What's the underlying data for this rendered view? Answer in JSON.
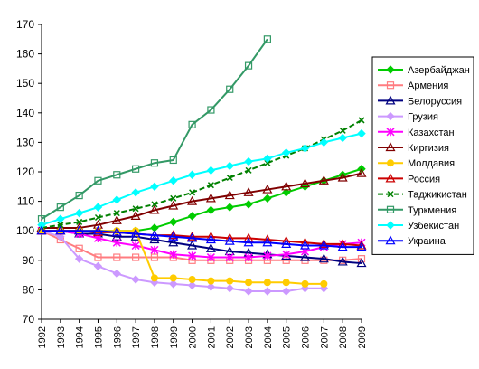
{
  "chart_data": {
    "type": "line",
    "x": [
      "1992",
      "1993",
      "1994",
      "1995",
      "1996",
      "1997",
      "1998",
      "1999",
      "2000",
      "2001",
      "2002",
      "2003",
      "2004",
      "2005",
      "2006",
      "2007",
      "2008",
      "2009"
    ],
    "ylim": [
      70,
      170
    ],
    "yticks": [
      70,
      80,
      90,
      100,
      110,
      120,
      130,
      140,
      150,
      160,
      170
    ],
    "grid": false,
    "legend": "right",
    "series": [
      {
        "name": "Азербайджан",
        "color": "#00cc00",
        "marker": "diamond",
        "dash": "",
        "values": [
          100,
          100,
          100,
          100,
          100,
          100,
          101,
          103,
          105,
          107,
          108,
          109,
          111,
          113,
          115,
          117,
          119,
          121
        ]
      },
      {
        "name": "Армения",
        "color": "#ff7c80",
        "marker": "square",
        "dash": "",
        "values": [
          100,
          97,
          94,
          91,
          91,
          91,
          91,
          91,
          90,
          90,
          90,
          90,
          90,
          90,
          90,
          90,
          90,
          90.5
        ]
      },
      {
        "name": "Белоруссия",
        "color": "#000080",
        "marker": "triangle",
        "dash": "",
        "values": [
          100,
          100,
          99,
          99,
          98,
          98,
          97,
          96,
          95,
          94,
          93,
          92.5,
          92,
          91.5,
          91,
          90.5,
          89.5,
          89
        ]
      },
      {
        "name": "Грузия",
        "color": "#cc99ff",
        "marker": "diamond",
        "dash": "",
        "values": [
          100,
          98,
          90.5,
          88,
          85.5,
          83.5,
          82.5,
          82,
          81.5,
          81,
          80.5,
          79.5,
          79.5,
          79.5,
          80.5,
          80.5,
          null,
          null
        ]
      },
      {
        "name": "Казахстан",
        "color": "#ff00ff",
        "marker": "star",
        "dash": "",
        "values": [
          100,
          100,
          99,
          97.5,
          96,
          95,
          93.5,
          92,
          91.5,
          91,
          91,
          91,
          91.5,
          92,
          93,
          94.5,
          95.5,
          96
        ]
      },
      {
        "name": "Киргизия",
        "color": "#800000",
        "marker": "triangle",
        "dash": "",
        "values": [
          101,
          101,
          101,
          102,
          103.5,
          105,
          107,
          108.5,
          110,
          111,
          112,
          113,
          114,
          115,
          116,
          117,
          118,
          119.5
        ]
      },
      {
        "name": "Молдавия",
        "color": "#ffcc00",
        "marker": "circle",
        "dash": "",
        "values": [
          100,
          100,
          100,
          100,
          100,
          100,
          84,
          84,
          83.5,
          83,
          83,
          82.5,
          82.5,
          82.5,
          82,
          82,
          null,
          null
        ]
      },
      {
        "name": "Россия",
        "color": "#cc0000",
        "marker": "triangle",
        "dash": "",
        "values": [
          100,
          100,
          100,
          99.5,
          99.5,
          99,
          98.5,
          98.5,
          98,
          98,
          97.5,
          97.5,
          97,
          96.5,
          96,
          95.5,
          95.5,
          95
        ]
      },
      {
        "name": "Таджикистан",
        "color": "#008000",
        "marker": "x",
        "dash": "6,3",
        "values": [
          101,
          102,
          103,
          104.5,
          106,
          107.5,
          109,
          111,
          113,
          115.5,
          118,
          120.5,
          123,
          125.5,
          128,
          131,
          134,
          137.5
        ]
      },
      {
        "name": "Туркмения",
        "color": "#339966",
        "marker": "square",
        "dash": "",
        "values": [
          104,
          108,
          112,
          117,
          119,
          121,
          123,
          124,
          136,
          141,
          148,
          156,
          165,
          null,
          null,
          null,
          null,
          null
        ]
      },
      {
        "name": "Узбекистан",
        "color": "#00ffff",
        "marker": "diamond",
        "dash": "",
        "values": [
          102,
          104,
          106,
          108,
          110.5,
          113,
          115,
          117,
          119,
          120.5,
          122,
          123.5,
          124.5,
          126.5,
          128,
          130,
          131.5,
          133
        ]
      },
      {
        "name": "Украина",
        "color": "#0000ff",
        "marker": "triangle",
        "dash": "",
        "values": [
          100,
          100,
          100,
          100,
          99.5,
          99,
          98.5,
          98,
          97.5,
          97,
          96.5,
          96,
          96,
          95.5,
          95,
          95,
          94.5,
          94.5
        ]
      }
    ]
  }
}
